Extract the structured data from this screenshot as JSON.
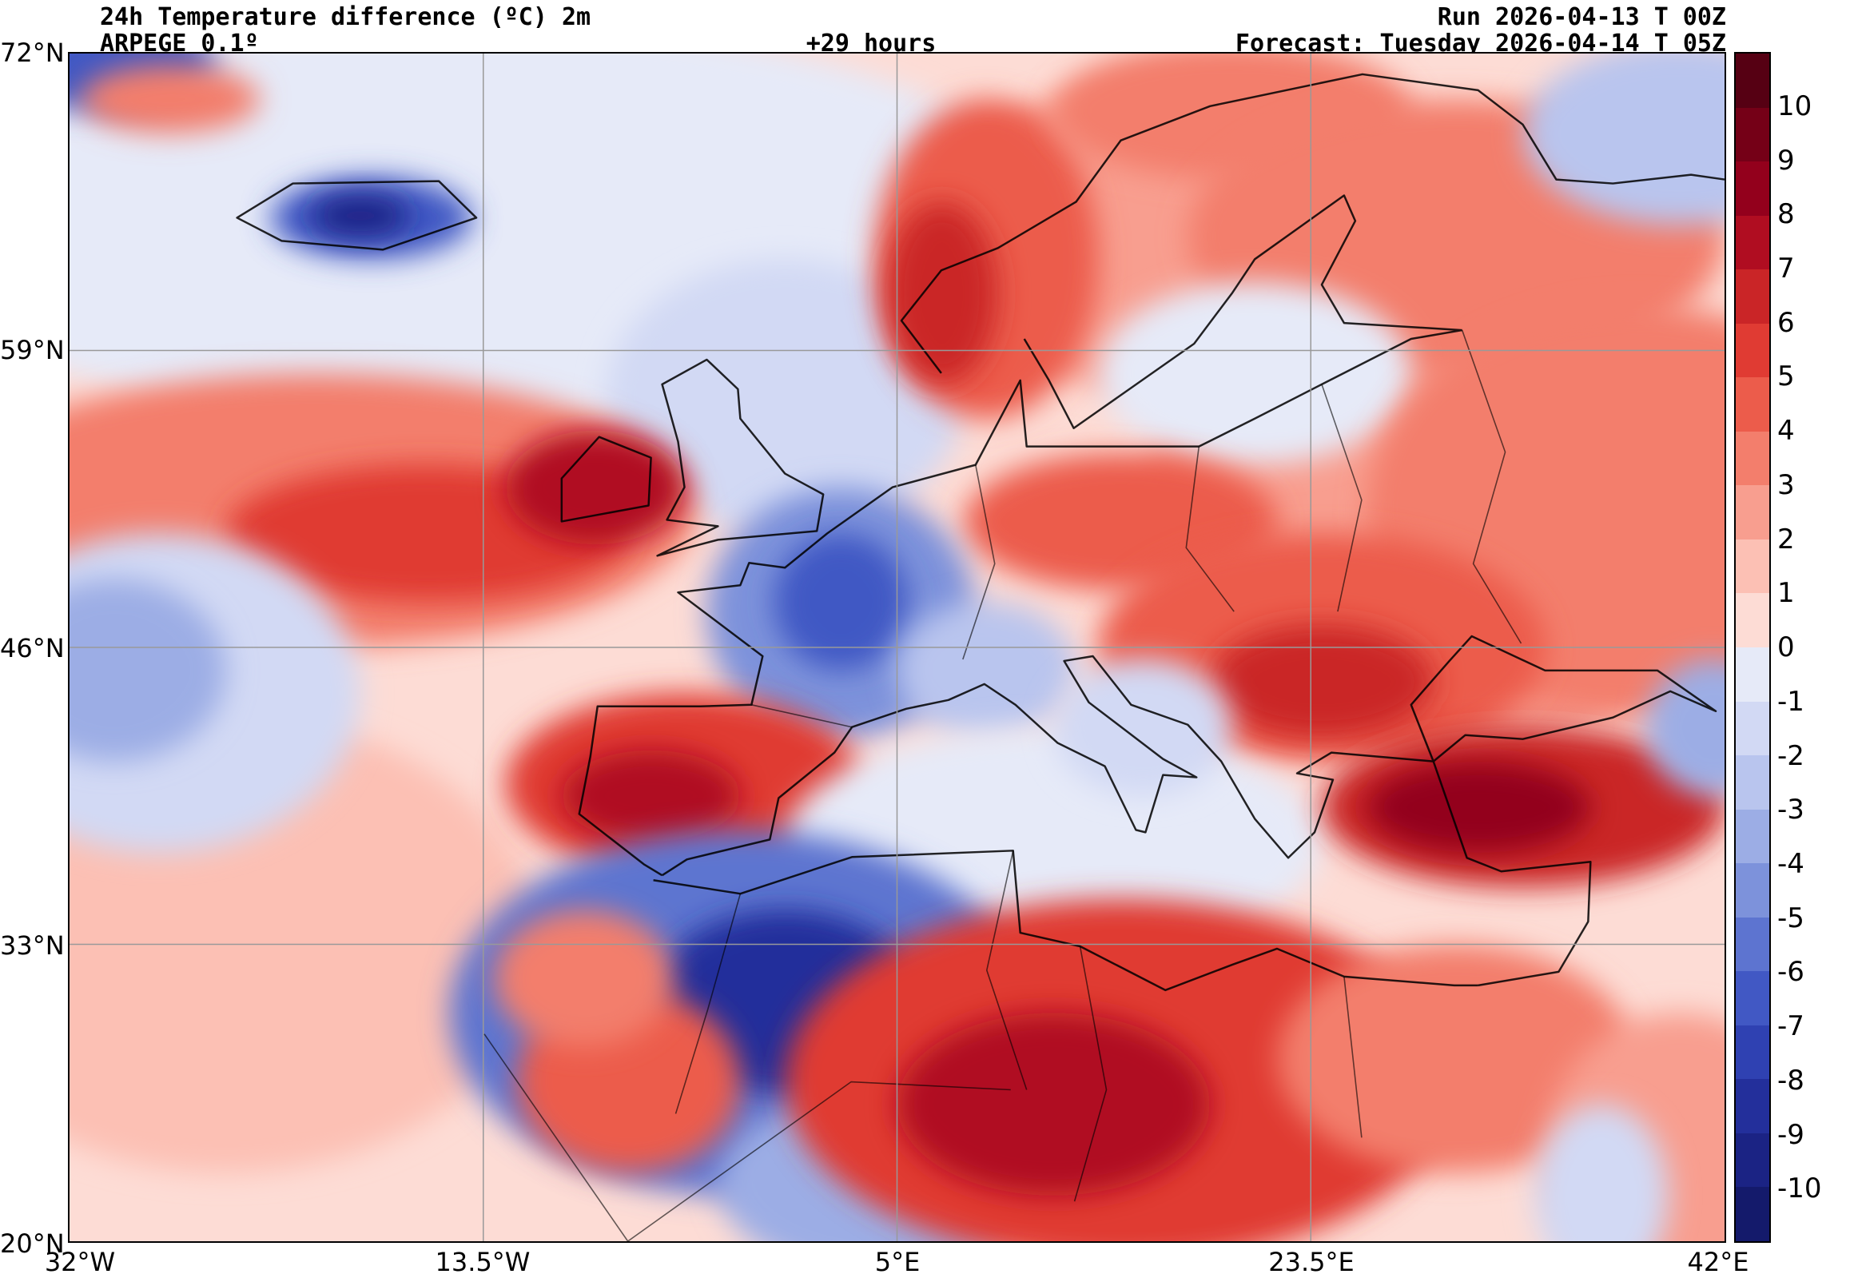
{
  "header": {
    "title_line1": "24h Temperature difference (ºC) 2m",
    "title_line2": "ARPEGE 0.1º",
    "lead_time": "+29 hours",
    "run_line": "Run 2026-04-13 T 00Z",
    "forecast_line": "Forecast: Tuesday 2026-04-14 T 05Z"
  },
  "axes": {
    "y_tick_labels": [
      "72°N",
      "59°N",
      "46°N",
      "33°N",
      "20°N"
    ],
    "x_tick_labels": [
      "32°W",
      "13.5°W",
      "5°E",
      "23.5°E",
      "42°E"
    ]
  },
  "colorbar": {
    "labels": [
      "10",
      "9",
      "8",
      "7",
      "6",
      "5",
      "4",
      "3",
      "2",
      "1",
      "0",
      "-1",
      "-2",
      "-3",
      "-4",
      "-5",
      "-6",
      "-7",
      "-8",
      "-9",
      "-10"
    ],
    "colors": [
      "#560013",
      "#750017",
      "#93001c",
      "#b00d21",
      "#ca2527",
      "#e03b33",
      "#ec5c4b",
      "#f37e6c",
      "#f89e8f",
      "#fcc0b4",
      "#fddcd5",
      "#e6eaf8",
      "#d2d9f4",
      "#b9c5ee",
      "#9cade5",
      "#7d92db",
      "#5d74d0",
      "#4158c4",
      "#2f41b2",
      "#232f9b",
      "#1b2384",
      "#141a6b"
    ]
  },
  "chart_data": {
    "type": "heatmap",
    "title": "24h Temperature difference (ºC) 2m",
    "model": "ARPEGE 0.1º",
    "lead_time_hours": 29,
    "run": "2026-04-13 00Z",
    "valid": "Tuesday 2026-04-14 05Z",
    "units": "°C",
    "lon_range": [
      -32,
      42
    ],
    "lat_range": [
      20,
      72
    ],
    "x_gridlines_lon": [
      -13.5,
      5,
      23.5
    ],
    "y_gridlines_lat": [
      33,
      46,
      59
    ],
    "value_range": [
      -10,
      10
    ],
    "colorbar_ticks": [
      10,
      9,
      8,
      7,
      6,
      5,
      4,
      3,
      2,
      1,
      0,
      -1,
      -2,
      -3,
      -4,
      -5,
      -6,
      -7,
      -8,
      -9,
      -10
    ],
    "base_value": 0.5,
    "legend_position": "right",
    "grid": true,
    "regions": [
      {
        "name": "north-atlantic-cool",
        "lon": -14,
        "lat": 64.5,
        "rx_deg": 26,
        "ry_deg": 9,
        "value": -1
      },
      {
        "name": "uk-north-sea-cool",
        "lon": 0,
        "lat": 57,
        "rx_deg": 8,
        "ry_deg": 6,
        "value": -2
      },
      {
        "name": "europe-east-warm-broad",
        "lon": 30,
        "lat": 52,
        "rx_deg": 14,
        "ry_deg": 10,
        "value": 2
      },
      {
        "name": "scandinavia-warm-broad",
        "lon": 18,
        "lat": 64,
        "rx_deg": 12,
        "ry_deg": 7,
        "value": 2
      },
      {
        "name": "mid-atlantic-pink",
        "lon": -25,
        "lat": 33,
        "rx_deg": 14,
        "ry_deg": 10,
        "value": 1
      },
      {
        "name": "atlantic-warm-band",
        "lon": -21,
        "lat": 52,
        "rx_deg": 17,
        "ry_deg": 6,
        "value": 3
      },
      {
        "name": "atlantic-warm-core",
        "lon": -16,
        "lat": 51,
        "rx_deg": 9,
        "ry_deg": 3,
        "value": 5
      },
      {
        "name": "sw-atlantic-cool",
        "lon": -28,
        "lat": 44,
        "rx_deg": 9,
        "ry_deg": 7,
        "value": -2
      },
      {
        "name": "sw-atlantic-cool-core",
        "lon": -30,
        "lat": 45,
        "rx_deg": 5,
        "ry_deg": 4,
        "value": -4
      },
      {
        "name": "greenland-corner-cool",
        "lon": -30.5,
        "lat": 71.5,
        "rx_deg": 5,
        "ry_deg": 2,
        "value": -7
      },
      {
        "name": "greenland-corner-warm",
        "lon": -27.5,
        "lat": 70,
        "rx_deg": 4,
        "ry_deg": 1.5,
        "value": 3
      },
      {
        "name": "iceland-cool",
        "lon": -18.5,
        "lat": 64.8,
        "rx_deg": 4.5,
        "ry_deg": 1.8,
        "value": -7
      },
      {
        "name": "iceland-cool-core",
        "lon": -19,
        "lat": 64.9,
        "rx_deg": 2.2,
        "ry_deg": 0.9,
        "value": -10
      },
      {
        "name": "ireland-warm",
        "lon": -8.5,
        "lat": 53,
        "rx_deg": 4,
        "ry_deg": 2.5,
        "value": 7
      },
      {
        "name": "scandes-warm",
        "lon": 9,
        "lat": 63,
        "rx_deg": 5,
        "ry_deg": 7,
        "value": 4
      },
      {
        "name": "norway-coast-warm-core",
        "lon": 7,
        "lat": 61.5,
        "rx_deg": 2.5,
        "ry_deg": 4,
        "value": 6
      },
      {
        "name": "scandinavia-ne-warm",
        "lon": 20,
        "lat": 69.5,
        "rx_deg": 8,
        "ry_deg": 3,
        "value": 3
      },
      {
        "name": "finland-nw-russia-warm",
        "lon": 30,
        "lat": 64,
        "rx_deg": 12,
        "ry_deg": 6,
        "value": 3
      },
      {
        "name": "ne-russia-cool",
        "lon": 40,
        "lat": 68.5,
        "rx_deg": 7,
        "ry_deg": 4,
        "value": -3
      },
      {
        "name": "baltic-cool",
        "lon": 21,
        "lat": 58,
        "rx_deg": 7,
        "ry_deg": 4,
        "value": -1
      },
      {
        "name": "russia-warm",
        "lon": 38,
        "lat": 52,
        "rx_deg": 12,
        "ry_deg": 9,
        "value": 3
      },
      {
        "name": "poland-germany-warm",
        "lon": 15,
        "lat": 51.5,
        "rx_deg": 7,
        "ry_deg": 3,
        "value": 4
      },
      {
        "name": "eastern-europe-warm",
        "lon": 24,
        "lat": 46,
        "rx_deg": 10,
        "ry_deg": 5,
        "value": 4
      },
      {
        "name": "balkans-warm-core",
        "lon": 24,
        "lat": 44.5,
        "rx_deg": 5,
        "ry_deg": 2.5,
        "value": 6
      },
      {
        "name": "france-cool",
        "lon": 2.5,
        "lat": 47.5,
        "rx_deg": 6,
        "ry_deg": 5.5,
        "value": -5
      },
      {
        "name": "france-cool-core",
        "lon": 2.5,
        "lat": 48,
        "rx_deg": 3,
        "ry_deg": 3,
        "value": -7
      },
      {
        "name": "alps-po-cool",
        "lon": 9,
        "lat": 45,
        "rx_deg": 4,
        "ry_deg": 3,
        "value": -3
      },
      {
        "name": "iberia-warm",
        "lon": -4.5,
        "lat": 40,
        "rx_deg": 8,
        "ry_deg": 4,
        "value": 5
      },
      {
        "name": "iberia-warm-core",
        "lon": -6,
        "lat": 39.5,
        "rx_deg": 4,
        "ry_deg": 2,
        "value": 7
      },
      {
        "name": "central-med-cool",
        "lon": 12,
        "lat": 37.5,
        "rx_deg": 12,
        "ry_deg": 5,
        "value": -1
      },
      {
        "name": "adriatic-cool",
        "lon": 16,
        "lat": 42.5,
        "rx_deg": 4,
        "ry_deg": 3,
        "value": -2
      },
      {
        "name": "nw-africa-cool",
        "lon": -2,
        "lat": 30,
        "rx_deg": 13,
        "ry_deg": 8,
        "value": -6
      },
      {
        "name": "sahara-cool-core",
        "lon": 0,
        "lat": 30.5,
        "rx_deg": 6,
        "ry_deg": 4,
        "value": -9
      },
      {
        "name": "mali-niger-cool",
        "lon": 4,
        "lat": 22.5,
        "rx_deg": 7,
        "ry_deg": 4,
        "value": -4
      },
      {
        "name": "south-morocco-warm",
        "lon": -7,
        "lat": 27,
        "rx_deg": 5,
        "ry_deg": 4,
        "value": 4
      },
      {
        "name": "morocco-coast-warm",
        "lon": -9,
        "lat": 31.5,
        "rx_deg": 4,
        "ry_deg": 3,
        "value": 3
      },
      {
        "name": "libya-egypt-warm",
        "lon": 15,
        "lat": 27,
        "rx_deg": 15,
        "ry_deg": 8,
        "value": 5
      },
      {
        "name": "libya-warm-core",
        "lon": 12,
        "lat": 26,
        "rx_deg": 7,
        "ry_deg": 4,
        "value": 7
      },
      {
        "name": "egypt-warm",
        "lon": 30,
        "lat": 28,
        "rx_deg": 8,
        "ry_deg": 5,
        "value": 3
      },
      {
        "name": "turkey-warm",
        "lon": 33,
        "lat": 39,
        "rx_deg": 9,
        "ry_deg": 3.5,
        "value": 6
      },
      {
        "name": "turkey-warm-core",
        "lon": 31,
        "lat": 39,
        "rx_deg": 5,
        "ry_deg": 2,
        "value": 8
      },
      {
        "name": "caucasus-cool",
        "lon": 41.5,
        "lat": 42.5,
        "rx_deg": 3,
        "ry_deg": 3,
        "value": -4
      },
      {
        "name": "arabia-warm",
        "lon": 40,
        "lat": 24,
        "rx_deg": 6,
        "ry_deg": 6,
        "value": 2
      },
      {
        "name": "red-sea-cool",
        "lon": 36.5,
        "lat": 22,
        "rx_deg": 3,
        "ry_deg": 4,
        "value": -2
      }
    ]
  }
}
